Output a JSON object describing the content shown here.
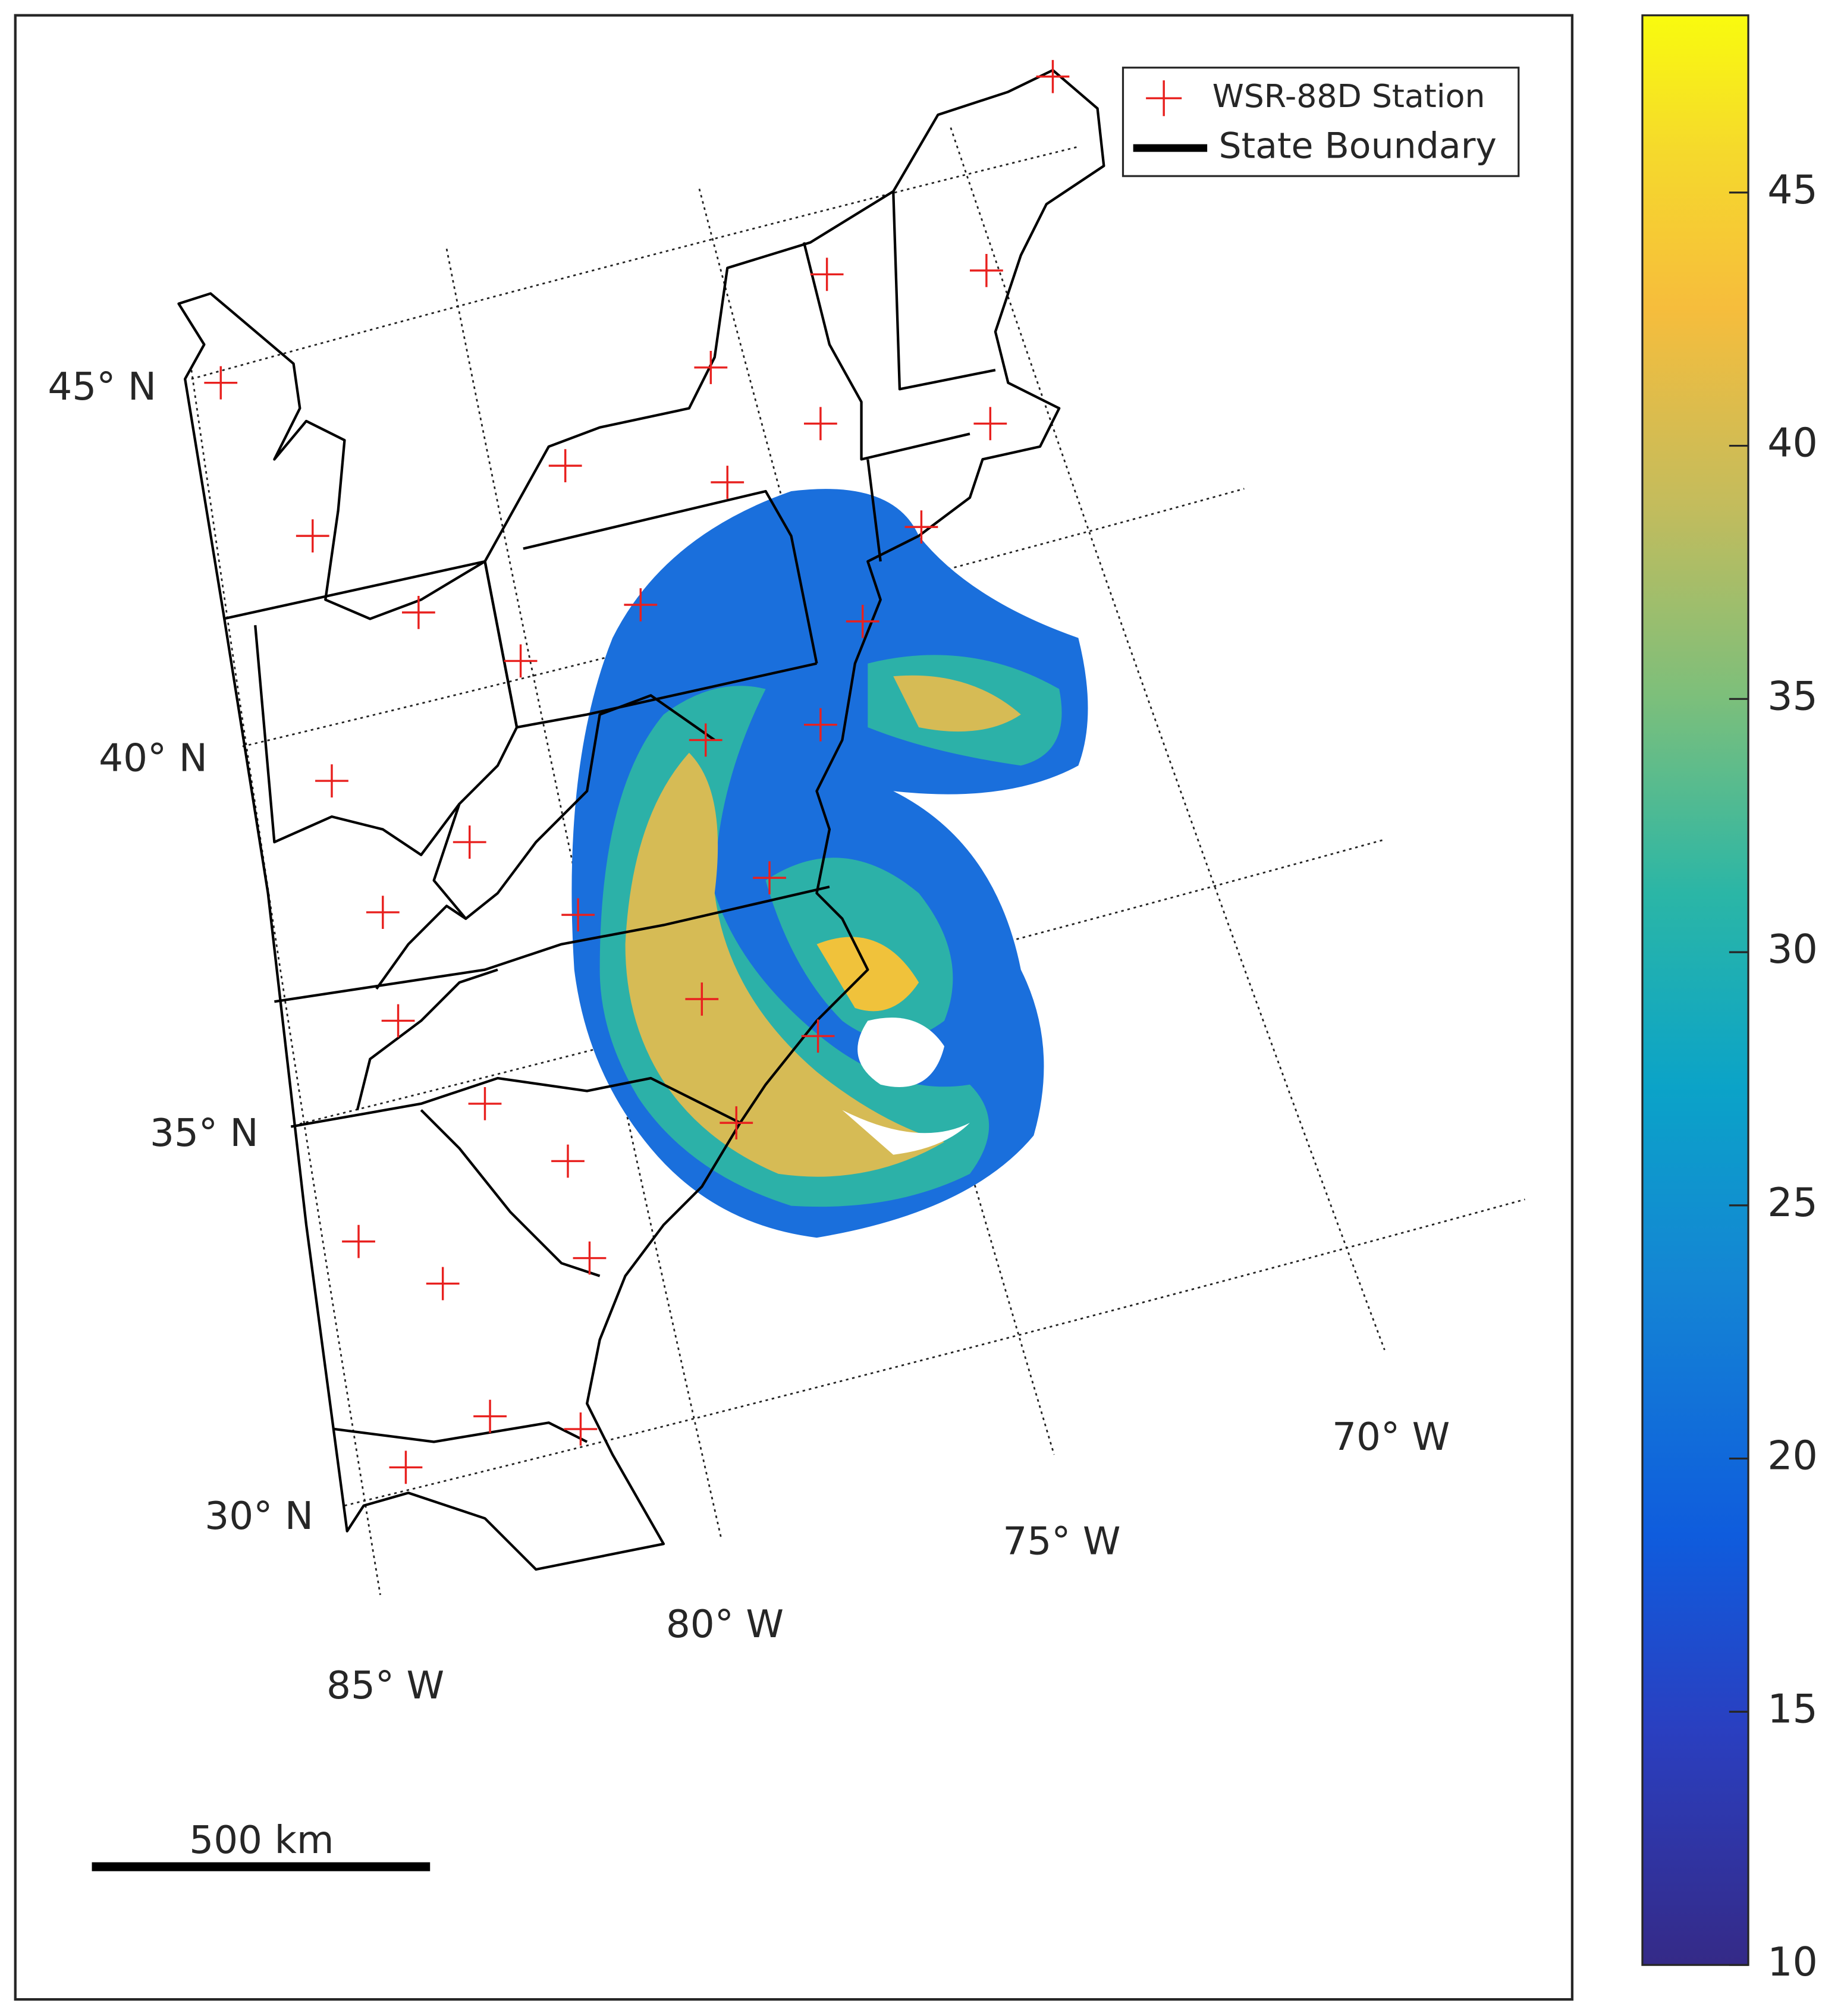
{
  "legend": {
    "entries": [
      "WSR-88D Station",
      "State Boundary"
    ]
  },
  "graticule": {
    "lat_labels": [
      "45° N",
      "40° N",
      "35° N",
      "30° N"
    ],
    "lon_labels": [
      "85° W",
      "80° W",
      "75° W",
      "70° W"
    ]
  },
  "scale_bar": {
    "label": "500 km"
  },
  "colorbar": {
    "lim": [
      10,
      48.5
    ],
    "ticks": [
      10,
      15,
      20,
      25,
      30,
      35,
      40,
      45
    ]
  }
}
